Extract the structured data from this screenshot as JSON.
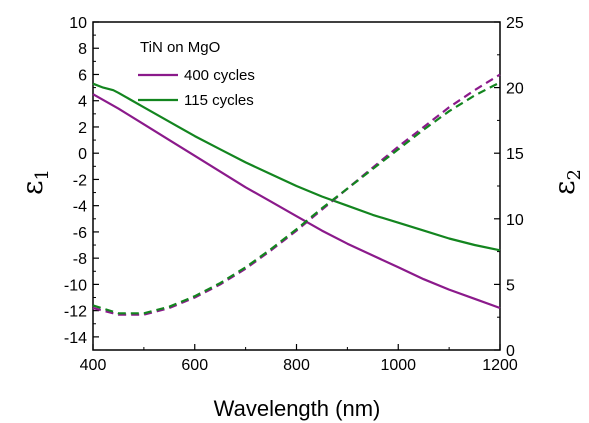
{
  "chart_data": {
    "type": "line",
    "legend_title": "TiN on MgO",
    "legend_position": "top-left",
    "xlabel": "Wavelength (nm)",
    "xlim": [
      400,
      1200
    ],
    "x_ticks": [
      400,
      600,
      800,
      1000,
      1200
    ],
    "y_left": {
      "label_symbol": "ε",
      "label_sub": "1",
      "lim": [
        -15,
        10
      ],
      "ticks": [
        10,
        8,
        6,
        4,
        2,
        0,
        -2,
        -4,
        -6,
        -8,
        -10,
        -12,
        -14
      ]
    },
    "y_right": {
      "label_symbol": "ε",
      "label_sub": "2",
      "lim": [
        0,
        25
      ],
      "ticks": [
        0,
        5,
        10,
        15,
        20,
        25
      ]
    },
    "colors": {
      "purple": "#8b1a8b",
      "green": "#13851f"
    },
    "series": [
      {
        "name": "400 cycles",
        "axis": "left",
        "style": "solid",
        "color": "#8b1a8b",
        "x": [
          400,
          450,
          500,
          550,
          600,
          650,
          700,
          750,
          800,
          850,
          900,
          950,
          1000,
          1050,
          1100,
          1150,
          1200
        ],
        "y": [
          4.5,
          3.4,
          2.2,
          1.0,
          -0.2,
          -1.4,
          -2.6,
          -3.7,
          -4.8,
          -5.9,
          -6.9,
          -7.8,
          -8.7,
          -9.6,
          -10.4,
          -11.1,
          -11.8
        ]
      },
      {
        "name": "115 cycles",
        "axis": "left",
        "style": "solid",
        "color": "#13851f",
        "x": [
          400,
          420,
          440,
          450,
          500,
          550,
          600,
          650,
          700,
          750,
          800,
          850,
          900,
          950,
          1000,
          1050,
          1100,
          1150,
          1200
        ],
        "y": [
          5.3,
          5.0,
          4.8,
          4.6,
          3.5,
          2.4,
          1.3,
          0.3,
          -0.7,
          -1.6,
          -2.5,
          -3.3,
          -4.0,
          -4.7,
          -5.3,
          -5.9,
          -6.5,
          -7.0,
          -7.4
        ]
      },
      {
        "name": "400 cycles",
        "axis": "right",
        "style": "dashed",
        "color": "#8b1a8b",
        "x": [
          400,
          450,
          500,
          550,
          600,
          650,
          700,
          750,
          800,
          850,
          900,
          950,
          1000,
          1050,
          1100,
          1150,
          1200
        ],
        "y": [
          3.2,
          2.7,
          2.7,
          3.2,
          4.0,
          5.0,
          6.2,
          7.6,
          9.1,
          10.7,
          12.3,
          13.9,
          15.5,
          17.0,
          18.5,
          19.8,
          21.0
        ]
      },
      {
        "name": "115 cycles",
        "axis": "right",
        "style": "dashed",
        "color": "#13851f",
        "x": [
          400,
          450,
          500,
          550,
          600,
          650,
          700,
          750,
          800,
          850,
          900,
          950,
          1000,
          1050,
          1100,
          1150,
          1200
        ],
        "y": [
          3.4,
          2.8,
          2.8,
          3.3,
          4.1,
          5.1,
          6.3,
          7.7,
          9.2,
          10.8,
          12.3,
          13.8,
          15.3,
          16.8,
          18.2,
          19.4,
          20.4
        ]
      }
    ]
  }
}
